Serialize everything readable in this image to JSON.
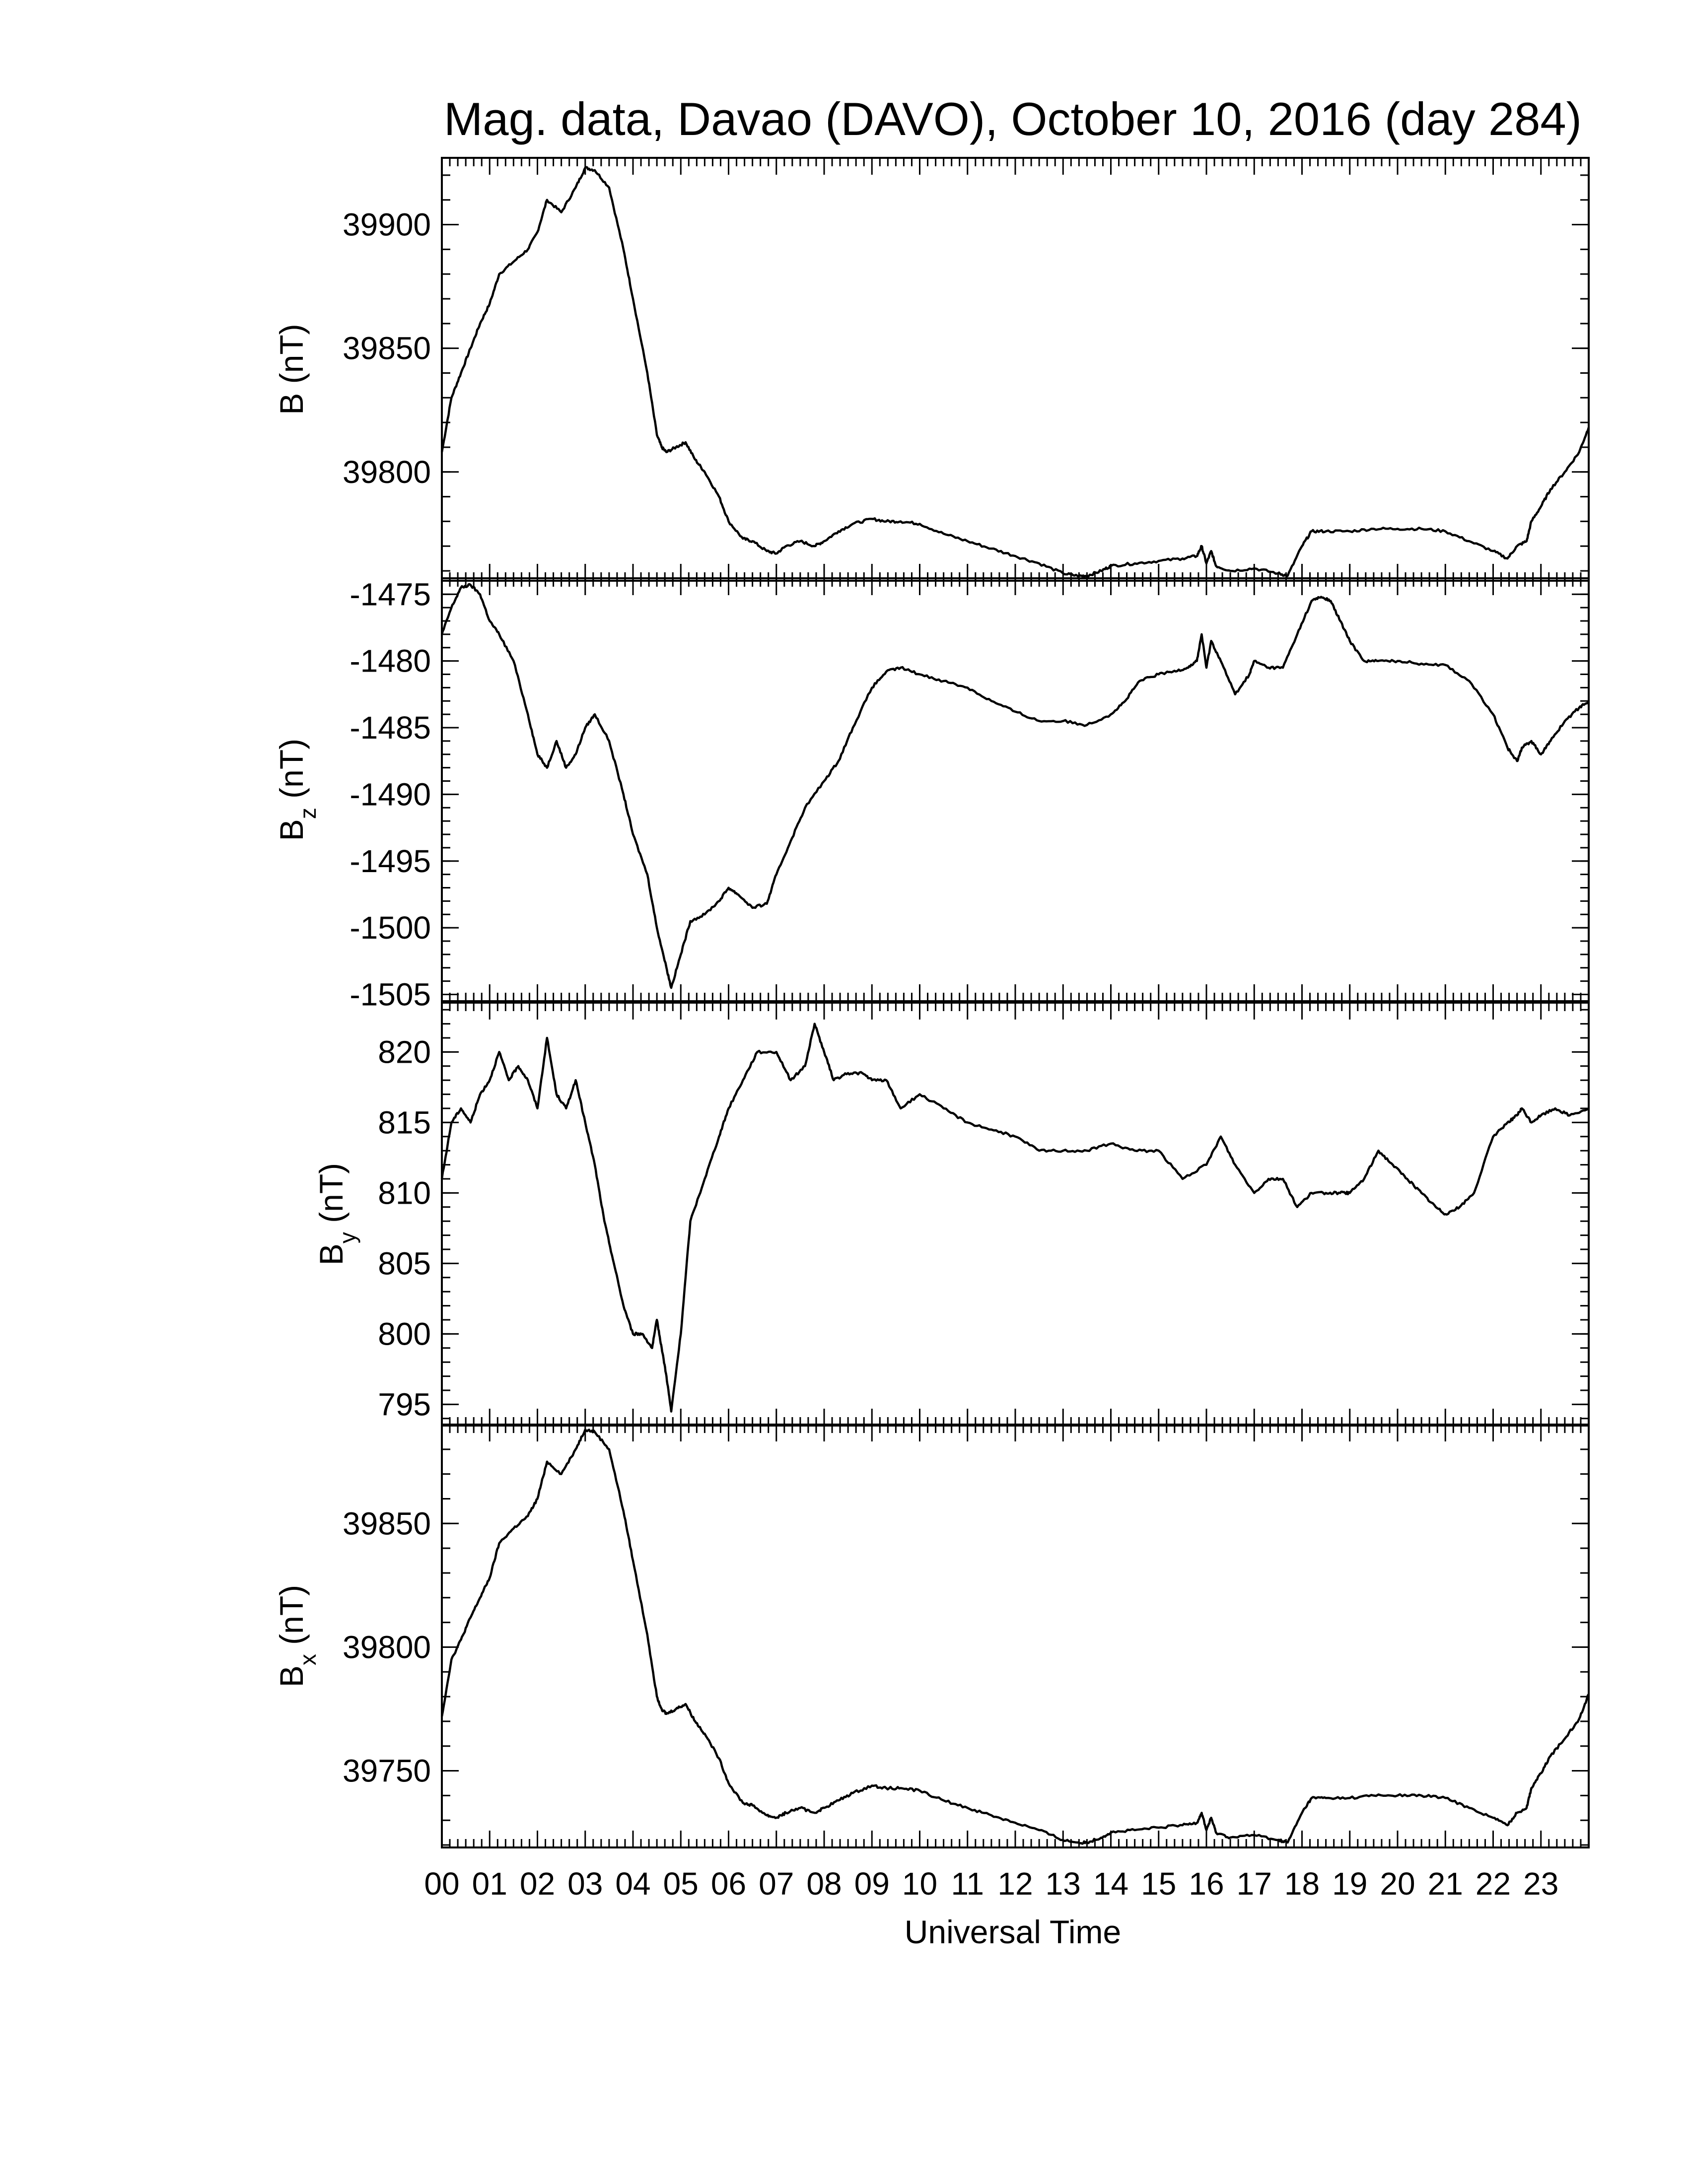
{
  "title": "Mag. data, Davao (DAVO), October 10, 2016 (day 284)",
  "xlabel": "Universal Time",
  "chart_data": [
    {
      "type": "line",
      "ylabel": {
        "main": "B",
        "sub": "",
        "unit": " (nT)"
      },
      "ylim": [
        39756,
        39927
      ],
      "yticks": [
        39800,
        39850,
        39900
      ],
      "xlim": [
        0,
        24
      ],
      "series": [
        {
          "x": [
            0,
            0.2,
            0.4,
            0.6,
            0.8,
            1,
            1.2,
            1.5,
            1.8,
            2.0,
            2.2,
            2.5,
            2.8,
            3.0,
            3.2,
            3.5,
            3.8,
            4.0,
            4.3,
            4.5,
            4.6,
            4.7,
            4.9,
            5.1,
            5.3,
            5.5,
            5.8,
            6.0,
            6.3,
            6.5,
            6.8,
            7.0,
            7.2,
            7.5,
            7.8,
            8.0,
            8.3,
            8.6,
            9.0,
            9.3,
            9.6,
            10.0,
            10.5,
            11.0,
            11.5,
            12.0,
            12.5,
            13.0,
            13.3,
            13.5,
            13.8,
            14.0,
            14.5,
            15.0,
            15.5,
            15.8,
            15.9,
            16.0,
            16.1,
            16.2,
            16.5,
            17.0,
            17.5,
            17.7,
            18.0,
            18.2,
            18.5,
            19.0,
            19.5,
            20.0,
            20.5,
            21.0,
            21.5,
            22.0,
            22.3,
            22.5,
            22.7,
            22.8,
            23.0,
            23.2,
            23.5,
            23.8,
            24.0
          ],
          "values": [
            39808,
            39830,
            39840,
            39850,
            39860,
            39868,
            39880,
            39885,
            39890,
            39897,
            39910,
            39905,
            39915,
            39923,
            39922,
            39915,
            39890,
            39870,
            39840,
            39815,
            39810,
            39808,
            39810,
            39812,
            39805,
            39800,
            39790,
            39780,
            39773,
            39772,
            39768,
            39767,
            39770,
            39772,
            39770,
            39772,
            39776,
            39779,
            39781,
            39780,
            39780,
            39779,
            39775,
            39772,
            39769,
            39766,
            39763,
            39759,
            39758,
            39758,
            39760,
            39762,
            39763,
            39764,
            39765,
            39766,
            39770,
            39763,
            39768,
            39762,
            39760,
            39761,
            39759,
            39758,
            39770,
            39776,
            39776,
            39776,
            39777,
            39777,
            39777,
            39776,
            39772,
            39768,
            39765,
            39770,
            39772,
            39780,
            39786,
            39793,
            39800,
            39808,
            39818
          ]
        }
      ]
    },
    {
      "type": "line",
      "ylabel": {
        "main": "B",
        "sub": "z",
        "unit": " (nT)"
      },
      "ylim": [
        -1505.5,
        -1473.8
      ],
      "yticks": [
        -1505,
        -1500,
        -1495,
        -1490,
        -1485,
        -1480,
        -1475
      ],
      "xlim": [
        0,
        24
      ],
      "series": [
        {
          "x": [
            0,
            0.2,
            0.4,
            0.6,
            0.8,
            1,
            1.2,
            1.5,
            1.8,
            2.0,
            2.2,
            2.4,
            2.6,
            2.8,
            3.0,
            3.2,
            3.5,
            3.8,
            4.0,
            4.3,
            4.5,
            4.7,
            4.8,
            5.0,
            5.2,
            5.5,
            5.8,
            6.0,
            6.2,
            6.5,
            6.8,
            7.0,
            7.3,
            7.6,
            8.0,
            8.3,
            8.6,
            9.0,
            9.3,
            9.6,
            10.0,
            10.5,
            11.0,
            11.5,
            12.0,
            12.5,
            13.0,
            13.5,
            14.0,
            14.3,
            14.6,
            15.0,
            15.3,
            15.6,
            15.8,
            15.9,
            16.0,
            16.1,
            16.3,
            16.6,
            16.9,
            17.0,
            17.3,
            17.6,
            17.9,
            18.2,
            18.4,
            18.6,
            18.8,
            19.0,
            19.3,
            19.6,
            20.0,
            20.5,
            21.0,
            21.5,
            22.0,
            22.3,
            22.5,
            22.6,
            22.8,
            23.0,
            23.2,
            23.5,
            23.8,
            24.0
          ],
          "values": [
            -1478,
            -1476,
            -1474.5,
            -1474.3,
            -1475,
            -1477,
            -1478,
            -1480,
            -1484,
            -1487,
            -1488,
            -1486,
            -1488,
            -1487,
            -1485,
            -1484,
            -1486,
            -1490,
            -1493,
            -1496,
            -1500,
            -1503,
            -1504.5,
            -1502,
            -1499.5,
            -1499,
            -1498,
            -1497,
            -1497.5,
            -1498.5,
            -1498.2,
            -1496,
            -1493.5,
            -1491,
            -1489,
            -1487.5,
            -1485,
            -1482,
            -1480.8,
            -1480.5,
            -1481,
            -1481.5,
            -1482,
            -1483,
            -1483.8,
            -1484.5,
            -1484.5,
            -1484.8,
            -1484,
            -1483,
            -1481.5,
            -1481,
            -1480.8,
            -1480.5,
            -1480,
            -1478,
            -1480.5,
            -1478.5,
            -1480,
            -1482.5,
            -1481,
            -1480,
            -1480.5,
            -1480.5,
            -1478,
            -1475.5,
            -1475.2,
            -1475.5,
            -1477,
            -1478.5,
            -1480,
            -1480,
            -1480,
            -1480.2,
            -1480.3,
            -1481.5,
            -1484,
            -1486.5,
            -1487.5,
            -1486.5,
            -1486,
            -1487,
            -1486,
            -1484.5,
            -1483.5,
            -1483
          ]
        }
      ]
    },
    {
      "type": "line",
      "ylabel": {
        "main": "B",
        "sub": "y",
        "unit": " (nT)"
      },
      "ylim": [
        793.5,
        823.5
      ],
      "yticks": [
        795,
        800,
        805,
        810,
        815,
        820
      ],
      "xlim": [
        0,
        24
      ],
      "series": [
        {
          "x": [
            0,
            0.2,
            0.4,
            0.6,
            0.8,
            1,
            1.2,
            1.4,
            1.6,
            1.8,
            2.0,
            2.2,
            2.4,
            2.6,
            2.8,
            3.0,
            3.2,
            3.4,
            3.6,
            3.8,
            4.0,
            4.2,
            4.4,
            4.5,
            4.6,
            4.7,
            4.8,
            5.0,
            5.2,
            5.5,
            5.8,
            6.0,
            6.3,
            6.6,
            7.0,
            7.3,
            7.6,
            7.8,
            8.0,
            8.2,
            8.5,
            8.8,
            9.0,
            9.3,
            9.6,
            10.0,
            10.5,
            11.0,
            11.5,
            12.0,
            12.5,
            13.0,
            13.5,
            14.0,
            14.5,
            15.0,
            15.5,
            16.0,
            16.3,
            16.6,
            17.0,
            17.3,
            17.6,
            17.9,
            18.2,
            18.5,
            18.8,
            19.0,
            19.3,
            19.6,
            19.9,
            20.2,
            20.5,
            20.8,
            21.0,
            21.3,
            21.6,
            22.0,
            22.3,
            22.5,
            22.6,
            22.8,
            23.0,
            23.3,
            23.6,
            24.0
          ],
          "values": [
            811,
            815,
            816,
            815,
            817,
            818,
            820,
            818,
            819,
            818,
            816,
            821,
            817,
            816,
            818,
            815,
            812,
            808,
            805,
            802,
            800,
            800,
            799,
            801,
            799,
            797,
            794.5,
            800,
            808,
            811,
            814,
            816,
            818,
            820,
            820,
            818,
            819,
            822,
            820,
            818,
            818.5,
            818.5,
            818,
            818,
            816,
            817,
            816,
            815,
            814.5,
            814,
            813,
            813,
            813,
            813.5,
            813,
            813,
            811,
            812,
            814,
            812,
            810,
            811,
            811,
            809,
            810,
            810,
            810,
            810,
            811,
            813,
            812,
            811,
            810,
            809,
            808.5,
            809,
            810,
            814,
            815,
            815.5,
            816,
            815,
            815.5,
            816,
            815.5,
            816
          ]
        }
      ]
    },
    {
      "type": "line",
      "ylabel": {
        "main": "B",
        "sub": "x",
        "unit": " (nT)"
      },
      "ylim": [
        39719,
        39890
      ],
      "yticks": [
        39750,
        39800,
        39850
      ],
      "xlim": [
        0,
        24
      ],
      "series": [
        {
          "x": [
            0,
            0.2,
            0.4,
            0.6,
            0.8,
            1,
            1.2,
            1.5,
            1.8,
            2.0,
            2.2,
            2.5,
            2.8,
            3.0,
            3.2,
            3.5,
            3.8,
            4.0,
            4.3,
            4.5,
            4.6,
            4.7,
            4.9,
            5.1,
            5.3,
            5.5,
            5.8,
            6.0,
            6.3,
            6.5,
            6.8,
            7.0,
            7.2,
            7.5,
            7.8,
            8.0,
            8.3,
            8.6,
            9.0,
            9.3,
            9.6,
            10.0,
            10.5,
            11.0,
            11.5,
            12.0,
            12.5,
            13.0,
            13.3,
            13.5,
            13.8,
            14.0,
            14.5,
            15.0,
            15.5,
            15.8,
            15.9,
            16.0,
            16.1,
            16.2,
            16.5,
            17.0,
            17.5,
            17.7,
            18.0,
            18.2,
            18.5,
            19.0,
            19.5,
            20.0,
            20.5,
            21.0,
            21.5,
            22.0,
            22.3,
            22.5,
            22.7,
            22.8,
            23.0,
            23.2,
            23.5,
            23.8,
            24.0
          ],
          "values": [
            39772,
            39795,
            39803,
            39812,
            39820,
            39828,
            39842,
            39848,
            39853,
            39860,
            39875,
            39870,
            39880,
            39888,
            39887,
            39880,
            39855,
            39835,
            39805,
            39780,
            39775,
            39773,
            39775,
            39777,
            39770,
            39765,
            39755,
            39745,
            39737,
            39736,
            39732,
            39731,
            39733,
            39735,
            39733,
            39735,
            39738,
            39741,
            39744,
            39743,
            39743,
            39742,
            39738,
            39735,
            39732,
            39729,
            39726,
            39722,
            39721,
            39721,
            39723,
            39725,
            39726,
            39727,
            39728,
            39729,
            39733,
            39726,
            39731,
            39725,
            39723,
            39724,
            39722,
            39721,
            39733,
            39739,
            39739,
            39739,
            39740,
            39740,
            39740,
            39739,
            39735,
            39731,
            39728,
            39733,
            39735,
            39743,
            39749,
            39756,
            39763,
            39771,
            39781
          ]
        }
      ]
    }
  ]
}
